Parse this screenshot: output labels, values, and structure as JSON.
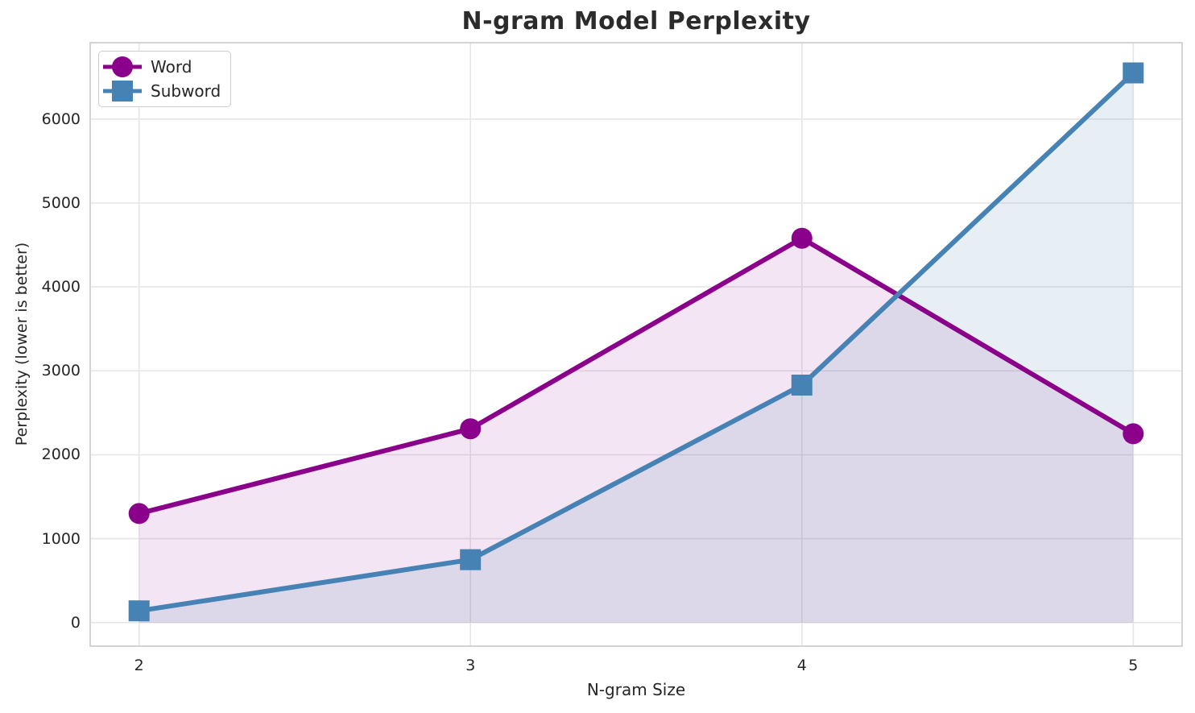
{
  "chart_data": {
    "type": "line",
    "title": "N-gram Model Perplexity",
    "xlabel": "N-gram Size",
    "ylabel": "Perplexity (lower is better)",
    "x": [
      2,
      3,
      4,
      5
    ],
    "series": [
      {
        "name": "Word",
        "values": [
          1300,
          2310,
          4580,
          2250
        ],
        "color": "#8B008B",
        "marker": "circle",
        "fill_opacity": 0.1
      },
      {
        "name": "Subword",
        "values": [
          140,
          750,
          2830,
          6550
        ],
        "color": "#4682B4",
        "marker": "square",
        "fill_opacity": 0.13
      }
    ],
    "fill_baseline": 0,
    "xticks": [
      2,
      3,
      4,
      5
    ],
    "yticks": [
      0,
      1000,
      2000,
      3000,
      4000,
      5000,
      6000
    ],
    "xlim": [
      1.85,
      5.15
    ],
    "ylim": [
      -290,
      6920
    ],
    "grid": true,
    "legend_position": "upper left",
    "colors": {
      "background": "#ffffff",
      "grid": "#e6e6e6",
      "spine": "#d4d4d4",
      "text": "#262626",
      "title": "#2b2b2b"
    }
  }
}
